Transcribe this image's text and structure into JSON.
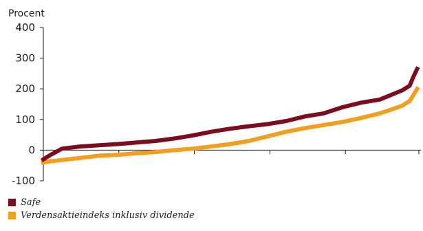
{
  "chart_data": {
    "type": "line",
    "title": "",
    "xlabel": "",
    "ylabel": "Procent",
    "ylim": [
      -100,
      400
    ],
    "y_ticks": [
      "400",
      "300",
      "200",
      "100",
      "0",
      "-100"
    ],
    "y_tick_values": [
      400,
      300,
      200,
      100,
      0,
      -100
    ],
    "x_ticks_labeled": false,
    "grid": false,
    "legend_position": "bottom-left",
    "series": [
      {
        "name": "Safe",
        "color": "#7a0d1e",
        "x": [
          0,
          0.02,
          0.05,
          0.1,
          0.15,
          0.2,
          0.25,
          0.3,
          0.35,
          0.4,
          0.45,
          0.5,
          0.55,
          0.6,
          0.65,
          0.7,
          0.75,
          0.8,
          0.85,
          0.9,
          0.93,
          0.96,
          0.98,
          0.99,
          1.0
        ],
        "values": [
          -30,
          -15,
          5,
          12,
          16,
          20,
          25,
          30,
          38,
          48,
          60,
          70,
          78,
          85,
          95,
          110,
          120,
          140,
          155,
          165,
          180,
          195,
          210,
          240,
          265
        ]
      },
      {
        "name": "Verdensaktieindeks inklusiv dividende",
        "color": "#f0a020",
        "x": [
          0,
          0.02,
          0.05,
          0.1,
          0.15,
          0.2,
          0.25,
          0.3,
          0.35,
          0.4,
          0.45,
          0.5,
          0.55,
          0.6,
          0.65,
          0.7,
          0.75,
          0.8,
          0.85,
          0.9,
          0.93,
          0.96,
          0.98,
          0.99,
          1.0
        ],
        "values": [
          -40,
          -36,
          -32,
          -25,
          -18,
          -15,
          -10,
          -6,
          0,
          5,
          12,
          20,
          30,
          45,
          60,
          72,
          82,
          92,
          105,
          120,
          132,
          145,
          160,
          180,
          200
        ]
      }
    ]
  },
  "legend": {
    "items": [
      {
        "label": "Safe",
        "color": "#7a0d1e"
      },
      {
        "label": "Verdensaktieindeks inklusiv dividende",
        "color": "#f0a020"
      }
    ]
  },
  "x_axis_tick_count": 6
}
